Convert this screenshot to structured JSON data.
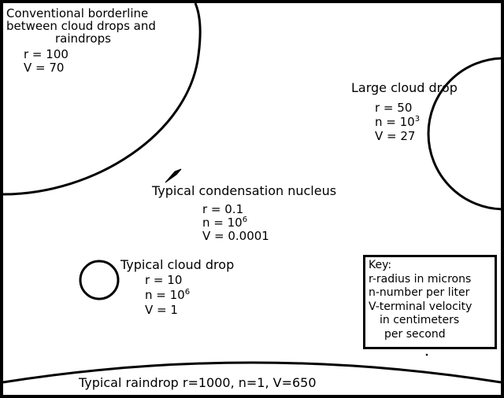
{
  "conventional": {
    "title_lines": [
      "Conventional borderline",
      "between cloud drops and",
      "raindrops"
    ],
    "r": "r = 100",
    "V": "V = 70"
  },
  "large_drop": {
    "title": "Large cloud drop",
    "r": "r = 50",
    "n_base": "n = 10",
    "n_exp": "3",
    "V": "V = 27"
  },
  "nucleus": {
    "title": "Typical condensation nucleus",
    "r": "r = 0.1",
    "n_base": "n = 10",
    "n_exp": "6",
    "V": "V = 0.0001"
  },
  "cloud_drop": {
    "title": "Typical cloud drop",
    "r": "r = 10",
    "n_base": "n = 10",
    "n_exp": "6",
    "V": "V = 1"
  },
  "raindrop": {
    "label": "Typical raindrop r=1000,  n=1,  V=650"
  },
  "key": {
    "title": "Key:",
    "lines": [
      "r-radius in microns",
      "n-number per liter",
      "V-terminal velocity",
      "  in centimeters",
      "  per second"
    ]
  }
}
